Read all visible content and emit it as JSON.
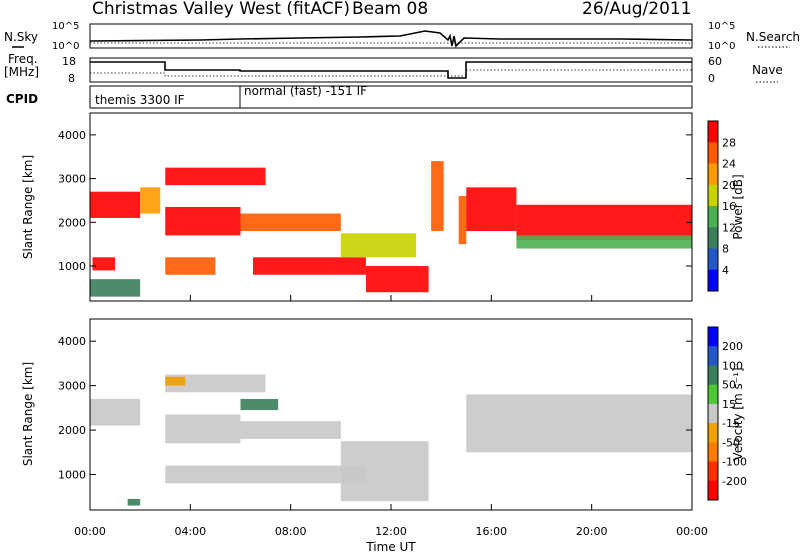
{
  "header": {
    "station": "Christmas Valley West (fitACF)",
    "beam": "Beam 08",
    "date": "26/Aug/2011"
  },
  "panels": {
    "nsky_label": "N.Sky",
    "nsearch_label": "N.Search",
    "nsky_ticks": [
      "10^5",
      "10^0"
    ],
    "freq_label_line1": "Freq.",
    "freq_label_line2": "[MHz]",
    "freq_ticks": [
      "18",
      "8"
    ],
    "nave_label": "Nave",
    "nave_ticks": [
      "60",
      "0"
    ],
    "cpid_label": "CPID",
    "cpid_segments": [
      {
        "label": "themis 3300 IF",
        "start_hour": 0,
        "end_hour": 6
      },
      {
        "label": "normal (fast) -151 IF",
        "start_hour": 6,
        "end_hour": 24
      }
    ]
  },
  "chart_data": [
    {
      "type": "heatmap",
      "name": "power",
      "xlabel": "Time UT",
      "ylabel": "Slant Range [km]",
      "xlim": [
        0,
        24
      ],
      "ylim": [
        200,
        4500
      ],
      "x_ticks": [
        "00:00",
        "04:00",
        "08:00",
        "12:00",
        "16:00",
        "20:00",
        "00:00"
      ],
      "y_ticks": [
        1000,
        2000,
        3000,
        4000
      ],
      "colorbar_label": "Power [dB]",
      "colorbar_ticks": [
        4,
        8,
        12,
        16,
        20,
        24,
        28
      ],
      "colorscale": [
        "#0000ff",
        "#2456c8",
        "#3c7d5a",
        "#4caf50",
        "#c8d200",
        "#ff9900",
        "#ff5a00",
        "#ff0000"
      ],
      "echo_bands": [
        {
          "t0": 0.0,
          "t1": 2.0,
          "r0": 2100,
          "r1": 2700,
          "level": 28
        },
        {
          "t0": 2.0,
          "t1": 2.8,
          "r0": 2200,
          "r1": 2800,
          "level": 20
        },
        {
          "t0": 3.0,
          "t1": 7.0,
          "r0": 2850,
          "r1": 3250,
          "level": 28
        },
        {
          "t0": 3.0,
          "t1": 6.0,
          "r0": 1700,
          "r1": 2350,
          "level": 28
        },
        {
          "t0": 6.0,
          "t1": 10.0,
          "r0": 1800,
          "r1": 2200,
          "level": 24
        },
        {
          "t0": 0.1,
          "t1": 1.0,
          "r0": 900,
          "r1": 1200,
          "level": 28
        },
        {
          "t0": 3.0,
          "t1": 5.0,
          "r0": 800,
          "r1": 1200,
          "level": 24
        },
        {
          "t0": 6.5,
          "t1": 11.0,
          "r0": 800,
          "r1": 1200,
          "level": 28
        },
        {
          "t0": 10.0,
          "t1": 13.0,
          "r0": 1200,
          "r1": 1750,
          "level": 16
        },
        {
          "t0": 11.0,
          "t1": 13.5,
          "r0": 400,
          "r1": 1000,
          "level": 28
        },
        {
          "t0": 13.6,
          "t1": 14.1,
          "r0": 1800,
          "r1": 3400,
          "level": 24
        },
        {
          "t0": 14.7,
          "t1": 15.0,
          "r0": 1500,
          "r1": 2600,
          "level": 24
        },
        {
          "t0": 15.0,
          "t1": 17.0,
          "r0": 1800,
          "r1": 2800,
          "level": 28
        },
        {
          "t0": 17.0,
          "t1": 24.0,
          "r0": 1600,
          "r1": 2400,
          "level": 28
        },
        {
          "t0": 17.0,
          "t1": 24.0,
          "r0": 1400,
          "r1": 1700,
          "level": 12
        },
        {
          "t0": 0.0,
          "t1": 2.0,
          "r0": 300,
          "r1": 700,
          "level": 8
        }
      ]
    },
    {
      "type": "heatmap",
      "name": "velocity",
      "xlabel": "Time UT",
      "ylabel": "Slant Range [km]",
      "xlim": [
        0,
        24
      ],
      "ylim": [
        200,
        4500
      ],
      "x_ticks": [
        "00:00",
        "04:00",
        "08:00",
        "12:00",
        "16:00",
        "20:00",
        "00:00"
      ],
      "y_ticks": [
        1000,
        2000,
        3000,
        4000
      ],
      "colorbar_label": "Velocity [m s⁻¹]",
      "colorbar_ticks": [
        200,
        100,
        50,
        15,
        -15,
        -50,
        -100,
        -200
      ],
      "colorscale": [
        "#0000ff",
        "#2456c8",
        "#3c7d5a",
        "#4cc832",
        "#c8c8c8",
        "#f0a000",
        "#ff7a00",
        "#ff3000",
        "#ff0000"
      ],
      "echo_bands": [
        {
          "t0": 0.0,
          "t1": 2.0,
          "r0": 2100,
          "r1": 2700,
          "level": 0
        },
        {
          "t0": 3.0,
          "t1": 7.0,
          "r0": 2850,
          "r1": 3250,
          "level": 0
        },
        {
          "t0": 3.0,
          "t1": 6.0,
          "r0": 1700,
          "r1": 2350,
          "level": 0
        },
        {
          "t0": 6.0,
          "t1": 10.0,
          "r0": 1800,
          "r1": 2200,
          "level": 0
        },
        {
          "t0": 3.0,
          "t1": 11.0,
          "r0": 800,
          "r1": 1200,
          "level": 0
        },
        {
          "t0": 10.0,
          "t1": 13.5,
          "r0": 400,
          "r1": 1750,
          "level": 0
        },
        {
          "t0": 15.0,
          "t1": 24.0,
          "r0": 1500,
          "r1": 2800,
          "level": 0
        },
        {
          "t0": 3.0,
          "t1": 3.8,
          "r0": 3000,
          "r1": 3200,
          "level": -50
        },
        {
          "t0": 6.0,
          "t1": 7.5,
          "r0": 2450,
          "r1": 2700,
          "level": 50
        },
        {
          "t0": 1.5,
          "t1": 2.0,
          "r0": 300,
          "r1": 450,
          "level": 50
        }
      ]
    }
  ]
}
